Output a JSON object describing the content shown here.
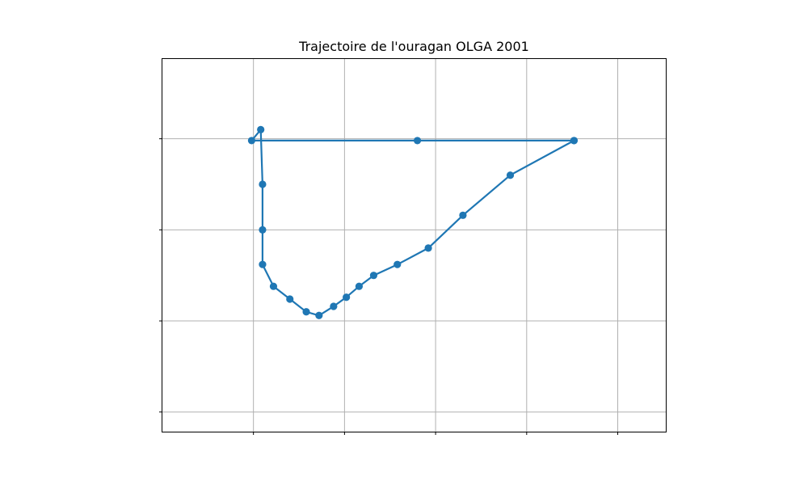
{
  "chart_data": {
    "type": "line",
    "title": "Trajectoire de l'ouragan OLGA 2001",
    "xlabel": "",
    "ylabel": "",
    "xlim": [
      -65.02,
      -37.34
    ],
    "ylim": [
      21.9,
      42.4
    ],
    "xticks": [
      -60,
      -55,
      -50,
      -45,
      -40
    ],
    "yticks": [
      23,
      28,
      33,
      38
    ],
    "grid": true,
    "markers": true,
    "color": "#1f77b4",
    "series": [
      {
        "x": [
          -42.4,
          -45.9,
          -48.5,
          -50.4,
          -52.1,
          -53.4,
          -54.2,
          -54.9,
          -55.6,
          -56.4,
          -57.1,
          -58.0,
          -58.9,
          -59.5,
          -59.5,
          -59.5,
          -59.6,
          -60.1,
          -51.0,
          -42.4
        ],
        "y": [
          37.9,
          36.0,
          33.8,
          32.0,
          31.1,
          30.5,
          29.9,
          29.3,
          28.8,
          28.3,
          28.5,
          29.2,
          29.9,
          31.1,
          33.0,
          35.5,
          38.5,
          37.9,
          37.9,
          37.9
        ]
      }
    ]
  }
}
